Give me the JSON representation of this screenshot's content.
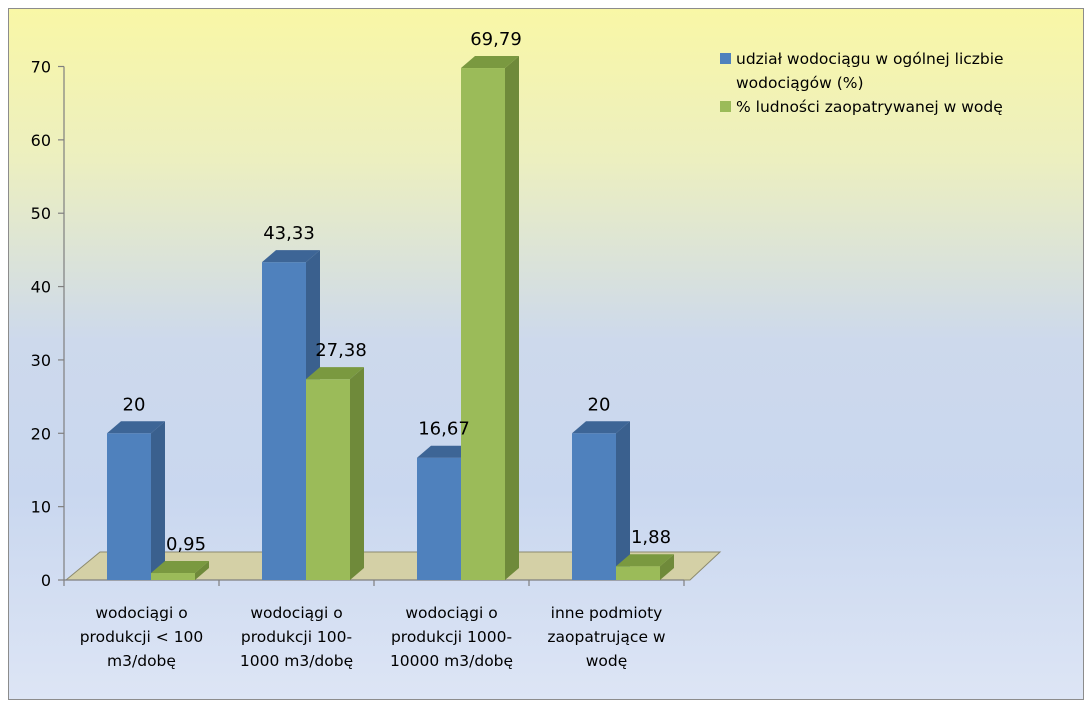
{
  "chart_data": {
    "type": "bar",
    "categories": [
      [
        "wodociągi o",
        "produkcji < 100",
        "m3/dobę"
      ],
      [
        "wodociągi o",
        "produkcji 100-",
        "1000 m3/dobę"
      ],
      [
        "wodociągi o",
        "produkcji 1000-",
        "10000 m3/dobę"
      ],
      [
        "inne podmioty",
        "zaopatrujące w",
        "wodę"
      ]
    ],
    "series": [
      {
        "name": [
          "udział wodociągu w ogólnej liczbie",
          "wodociągów (%)"
        ],
        "values": [
          20,
          43.33,
          16.67,
          20
        ],
        "value_labels": [
          "20",
          "43,33",
          "16,67",
          "20"
        ],
        "color": "#4f81bd",
        "side_color": "#3a608e",
        "top_color": "#3d6596"
      },
      {
        "name": [
          "% ludności zaopatrywanej w wodę"
        ],
        "values": [
          0.95,
          27.38,
          69.79,
          1.88
        ],
        "value_labels": [
          "0,95",
          "27,38",
          "69,79",
          "1,88"
        ],
        "color": "#9bbb59",
        "side_color": "#6f8a3a",
        "top_color": "#7a9940"
      }
    ],
    "ylim": [
      0,
      70
    ],
    "yticks": [
      "0",
      "10",
      "20",
      "30",
      "40",
      "50",
      "60",
      "70"
    ],
    "grid": false,
    "legend_position": "top-right",
    "floor_color": "#d4d0a6",
    "title": "",
    "xlabel": "",
    "ylabel": ""
  }
}
